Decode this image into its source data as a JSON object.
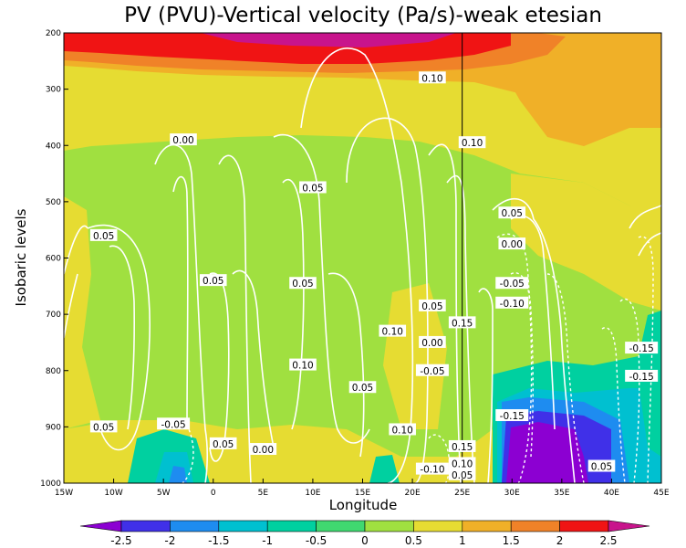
{
  "chart_data": {
    "type": "contour",
    "title": "PV (PVU)-Vertical velocity (Pa/s)-weak etesian",
    "xlabel": "Longitude",
    "ylabel": "Isobaric levels",
    "x_ticks": [
      "15W",
      "10W",
      "5W",
      "0",
      "5E",
      "10E",
      "15E",
      "20E",
      "25E",
      "30E",
      "35E",
      "40E",
      "45E"
    ],
    "y_ticks": [
      "200",
      "300",
      "400",
      "500",
      "600",
      "700",
      "800",
      "900",
      "1000"
    ],
    "xlim": [
      -15,
      45
    ],
    "ylim": [
      1000,
      200
    ],
    "marker_line_lon": 25,
    "colorbar": {
      "ticks": [
        "-2.5",
        "-2",
        "-1.5",
        "-1",
        "-0.5",
        "0",
        "0.5",
        "1",
        "1.5",
        "2",
        "2.5"
      ],
      "colors": [
        "#8c00d2",
        "#4030e8",
        "#1e8cf0",
        "#00c0d0",
        "#00d0a0",
        "#40d870",
        "#a0e040",
        "#e6dc32",
        "#f0b028",
        "#f08228",
        "#f01414",
        "#c8148c"
      ]
    },
    "contour_labels": [
      {
        "text": "0.10",
        "lon": 22,
        "p": 280
      },
      {
        "text": "0.10",
        "lon": 26,
        "p": 395
      },
      {
        "text": "0.00",
        "lon": -3,
        "p": 390
      },
      {
        "text": "0.05",
        "lon": 10,
        "p": 475
      },
      {
        "text": "0.05",
        "lon": -11,
        "p": 560
      },
      {
        "text": "0.05",
        "lon": 30,
        "p": 520
      },
      {
        "text": "0.00",
        "lon": 30,
        "p": 575
      },
      {
        "text": "0.05",
        "lon": 0,
        "p": 640
      },
      {
        "text": "0.05",
        "lon": 9,
        "p": 645
      },
      {
        "text": "-0.05",
        "lon": 30,
        "p": 645
      },
      {
        "text": "-0.10",
        "lon": 30,
        "p": 680
      },
      {
        "text": "0.05",
        "lon": 22,
        "p": 685
      },
      {
        "text": "0.15",
        "lon": 25,
        "p": 715
      },
      {
        "text": "0.10",
        "lon": 18,
        "p": 730
      },
      {
        "text": "0.00",
        "lon": 22,
        "p": 750
      },
      {
        "text": "0.10",
        "lon": 9,
        "p": 790
      },
      {
        "text": "-0.05",
        "lon": 22,
        "p": 800
      },
      {
        "text": "0.05",
        "lon": 15,
        "p": 830
      },
      {
        "text": "-0.15",
        "lon": 43,
        "p": 760
      },
      {
        "text": "-0.15",
        "lon": 43,
        "p": 810
      },
      {
        "text": "-0.15",
        "lon": 30,
        "p": 880
      },
      {
        "text": "-0.05",
        "lon": -4,
        "p": 895
      },
      {
        "text": "0.05",
        "lon": -11,
        "p": 900
      },
      {
        "text": "0.10",
        "lon": 19,
        "p": 905
      },
      {
        "text": "0.05",
        "lon": 1,
        "p": 930
      },
      {
        "text": "0.00",
        "lon": 5,
        "p": 940
      },
      {
        "text": "0.15",
        "lon": 25,
        "p": 935
      },
      {
        "text": "0.10",
        "lon": 25,
        "p": 965
      },
      {
        "text": "0.05",
        "lon": 39,
        "p": 970
      },
      {
        "text": "-0.10",
        "lon": 22,
        "p": 975
      },
      {
        "text": "0.05",
        "lon": 25,
        "p": 985
      }
    ]
  }
}
